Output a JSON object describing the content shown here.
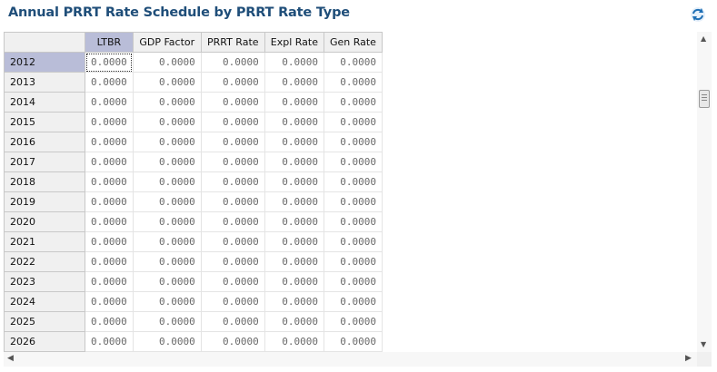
{
  "title": "Annual PRRT Rate Schedule by PRRT Rate Type",
  "columns": [
    "LTBR",
    "GDP Factor",
    "PRRT Rate",
    "Expl Rate",
    "Gen Rate"
  ],
  "rows": [
    {
      "year": "2012",
      "values": [
        "0.0000",
        "0.0000",
        "0.0000",
        "0.0000",
        "0.0000"
      ]
    },
    {
      "year": "2013",
      "values": [
        "0.0000",
        "0.0000",
        "0.0000",
        "0.0000",
        "0.0000"
      ]
    },
    {
      "year": "2014",
      "values": [
        "0.0000",
        "0.0000",
        "0.0000",
        "0.0000",
        "0.0000"
      ]
    },
    {
      "year": "2015",
      "values": [
        "0.0000",
        "0.0000",
        "0.0000",
        "0.0000",
        "0.0000"
      ]
    },
    {
      "year": "2016",
      "values": [
        "0.0000",
        "0.0000",
        "0.0000",
        "0.0000",
        "0.0000"
      ]
    },
    {
      "year": "2017",
      "values": [
        "0.0000",
        "0.0000",
        "0.0000",
        "0.0000",
        "0.0000"
      ]
    },
    {
      "year": "2018",
      "values": [
        "0.0000",
        "0.0000",
        "0.0000",
        "0.0000",
        "0.0000"
      ]
    },
    {
      "year": "2019",
      "values": [
        "0.0000",
        "0.0000",
        "0.0000",
        "0.0000",
        "0.0000"
      ]
    },
    {
      "year": "2020",
      "values": [
        "0.0000",
        "0.0000",
        "0.0000",
        "0.0000",
        "0.0000"
      ]
    },
    {
      "year": "2021",
      "values": [
        "0.0000",
        "0.0000",
        "0.0000",
        "0.0000",
        "0.0000"
      ]
    },
    {
      "year": "2022",
      "values": [
        "0.0000",
        "0.0000",
        "0.0000",
        "0.0000",
        "0.0000"
      ]
    },
    {
      "year": "2023",
      "values": [
        "0.0000",
        "0.0000",
        "0.0000",
        "0.0000",
        "0.0000"
      ]
    },
    {
      "year": "2024",
      "values": [
        "0.0000",
        "0.0000",
        "0.0000",
        "0.0000",
        "0.0000"
      ]
    },
    {
      "year": "2025",
      "values": [
        "0.0000",
        "0.0000",
        "0.0000",
        "0.0000",
        "0.0000"
      ]
    },
    {
      "year": "2026",
      "values": [
        "0.0000",
        "0.0000",
        "0.0000",
        "0.0000",
        "0.0000"
      ]
    }
  ],
  "selected": {
    "row": 0,
    "col": 0
  },
  "icons": {
    "refresh": "refresh-icon"
  },
  "colors": {
    "title": "#1f4e79",
    "selected_header": "#b9bdd8",
    "header_bg": "#f0f0f0",
    "cell_text": "#6a6a6a"
  }
}
